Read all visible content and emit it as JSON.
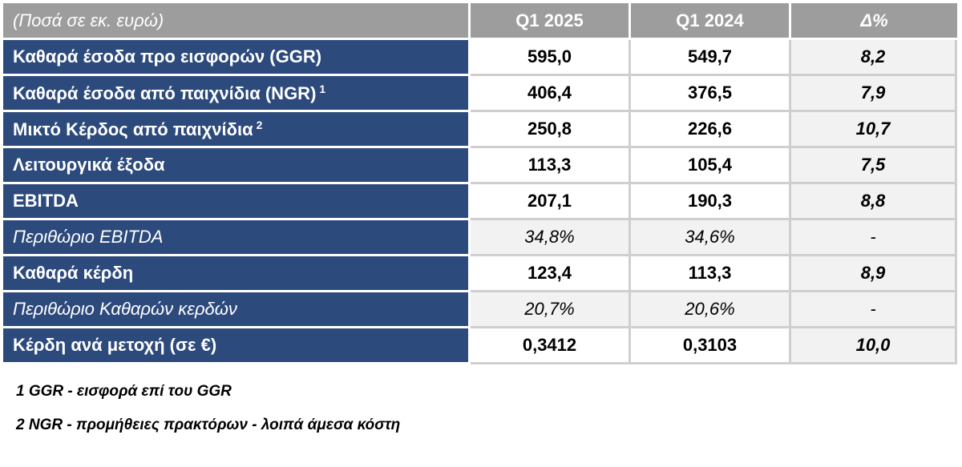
{
  "table": {
    "header": {
      "label": "(Ποσά σε εκ. ευρώ)",
      "col1": "Q1 2025",
      "col2": "Q1 2024",
      "col3": "Δ%"
    },
    "rows": [
      {
        "label": "Καθαρά έσοδα προ εισφορών (GGR)",
        "sup": "",
        "q1_2025": "595,0",
        "q1_2024": "549,7",
        "delta": "8,2"
      },
      {
        "label": "Καθαρά έσοδα από παιχνίδια (NGR)",
        "sup": "1",
        "q1_2025": "406,4",
        "q1_2024": "376,5",
        "delta": "7,9"
      },
      {
        "label": "Μικτό Κέρδος από παιχνίδια",
        "sup": "2",
        "q1_2025": "250,8",
        "q1_2024": "226,6",
        "delta": "10,7"
      },
      {
        "label": "Λειτουργικά έξοδα",
        "sup": "",
        "q1_2025": "113,3",
        "q1_2024": "105,4",
        "delta": "7,5"
      },
      {
        "label": "EBITDA",
        "sup": "",
        "q1_2025": "207,1",
        "q1_2024": "190,3",
        "delta": "8,8"
      },
      {
        "label": "Περιθώριο EBITDA",
        "sup": "",
        "q1_2025": "34,8%",
        "q1_2024": "34,6%",
        "delta": "-"
      },
      {
        "label": "Καθαρά κέρδη",
        "sup": "",
        "q1_2025": "123,4",
        "q1_2024": "113,3",
        "delta": "8,9"
      },
      {
        "label": "Περιθώριο Καθαρών κερδών",
        "sup": "",
        "q1_2025": "20,7%",
        "q1_2024": "20,6%",
        "delta": "-"
      },
      {
        "label": "Κέρδη ανά μετοχή (σε €)",
        "sup": "",
        "q1_2025": "0,3412",
        "q1_2024": "0,3103",
        "delta": "10,0"
      }
    ]
  },
  "footnotes": [
    "1 GGR - εισφορά επί του GGR",
    "2 NGR - προμήθειες πρακτόρων - λοιπά άμεσα κόστη"
  ],
  "colors": {
    "label_background": "#2d4a7c",
    "header_background": "#9d9d9d",
    "delta_background": "#f2f2f2"
  }
}
